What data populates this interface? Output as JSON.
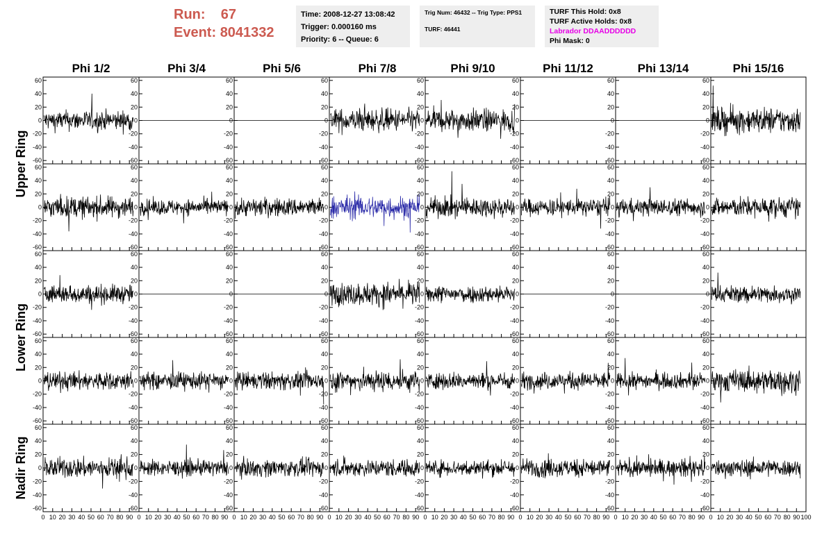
{
  "header": {
    "run_label": "Run:",
    "run_value": "67",
    "event_label": "Event:",
    "event_value": "8041332",
    "time": "Time: 2008-12-27 13:08:42",
    "trigger": "Trigger: 0.000160 ms",
    "priority": "Priority: 6 -- Queue: 6",
    "trig_num": "Trig Num: 46432 -- Trig Type: PPS1",
    "turf": "TURF: 46441",
    "turf_this_hold": "TURF This Hold: 0x8",
    "turf_active_holds": "TURF Active Holds: 0x8",
    "labrador": "Labrador DDAADDDDDD",
    "phi_mask": "Phi Mask: 0"
  },
  "colors": {
    "title_red": "#cc5a50",
    "labrador_magenta": "#e600e6",
    "trace": "#000000",
    "highlight_trace": "#2a2aa8",
    "info_bg": "#eeeeee"
  },
  "chart_data": {
    "type": "line",
    "columns": [
      "Phi 1/2",
      "Phi 3/4",
      "Phi 5/6",
      "Phi 7/8",
      "Phi 9/10",
      "Phi 11/12",
      "Phi 13/14",
      "Phi 15/16"
    ],
    "rings": [
      {
        "name": "Upper Ring",
        "rows": [
          0,
          1
        ]
      },
      {
        "name": "Lower Ring",
        "rows": [
          2,
          3
        ]
      },
      {
        "name": "Nadir Ring",
        "rows": [
          4
        ]
      }
    ],
    "xlim": [
      0,
      100
    ],
    "ylim": [
      -65,
      65
    ],
    "y_ticks": [
      -60,
      -40,
      -20,
      0,
      20,
      40,
      60
    ],
    "x_ticks": [
      0,
      10,
      20,
      30,
      40,
      50,
      60,
      70,
      80,
      90,
      100
    ],
    "samples_per_trace": 260,
    "flat_panels": [
      [
        0,
        1
      ],
      [
        0,
        2
      ],
      [
        0,
        5
      ],
      [
        0,
        6
      ],
      [
        2,
        1
      ],
      [
        2,
        2
      ],
      [
        2,
        5
      ],
      [
        2,
        6
      ]
    ],
    "highlight_panel": [
      1,
      3
    ],
    "amplitudes": [
      [
        14,
        0,
        0,
        16,
        16,
        0,
        0,
        18
      ],
      [
        15,
        11,
        13,
        16,
        14,
        12,
        12,
        14
      ],
      [
        13,
        0,
        0,
        16,
        12,
        0,
        0,
        12
      ],
      [
        13,
        12,
        12,
        15,
        12,
        12,
        11,
        16
      ],
      [
        14,
        11,
        12,
        12,
        11,
        13,
        12,
        12
      ]
    ]
  }
}
